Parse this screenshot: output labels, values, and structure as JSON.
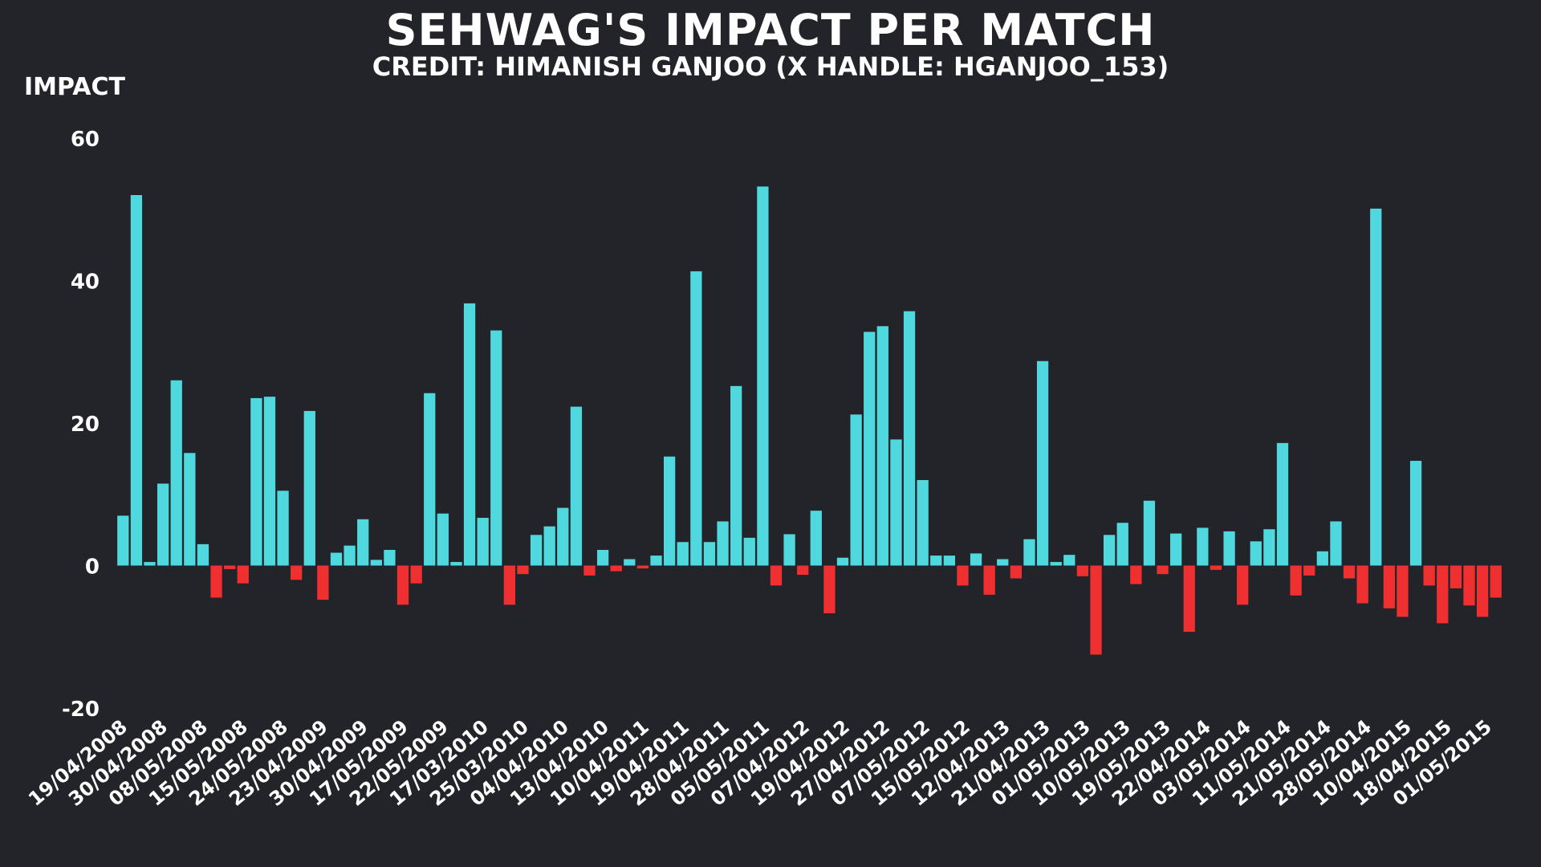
{
  "chart_data": {
    "type": "bar",
    "title": "SEHWAG'S IMPACT PER MATCH",
    "subtitle": "CREDIT: HIMANISH GANJOO (X HANDLE: HGANJOO_153)",
    "xlabel": "",
    "ylabel": "IMPACT",
    "ylim": [
      -20,
      60
    ],
    "yticks": [
      60,
      40,
      20,
      0,
      -20
    ],
    "grid": false,
    "positive_color": "#4fd8de",
    "negative_color": "#f03030",
    "x_tick_labels": [
      "19/04/2008",
      "30/04/2008",
      "08/05/2008",
      "15/05/2008",
      "24/05/2008",
      "23/04/2009",
      "30/04/2009",
      "17/05/2009",
      "22/05/2009",
      "17/03/2010",
      "25/03/2010",
      "04/04/2010",
      "13/04/2010",
      "10/04/2011",
      "19/04/2011",
      "28/04/2011",
      "05/05/2011",
      "07/04/2012",
      "19/04/2012",
      "27/04/2012",
      "07/05/2012",
      "15/05/2012",
      "12/04/2013",
      "21/04/2013",
      "01/05/2013",
      "10/05/2013",
      "19/05/2013",
      "22/04/2014",
      "03/05/2014",
      "11/05/2014",
      "21/05/2014",
      "28/05/2014",
      "10/04/2015",
      "18/04/2015",
      "01/05/2015"
    ],
    "values": [
      7,
      52,
      0.5,
      11.5,
      26,
      15.8,
      3,
      -4.5,
      -0.5,
      -2.5,
      23.5,
      23.7,
      10.5,
      -2,
      21.7,
      -4.8,
      1.8,
      2.8,
      6.5,
      0.8,
      2.2,
      -5.5,
      -2.5,
      24.2,
      7.3,
      0.5,
      36.8,
      6.7,
      33,
      -5.5,
      -1.2,
      4.3,
      5.5,
      8.1,
      22.3,
      -1.4,
      2.2,
      -0.8,
      0.9,
      -0.4,
      1.4,
      15.3,
      3.3,
      41.3,
      3.3,
      6.2,
      25.2,
      3.9,
      53.2,
      -2.8,
      4.4,
      -1.3,
      7.7,
      -6.7,
      1.1,
      21.2,
      32.8,
      33.6,
      17.7,
      35.7,
      12,
      1.4,
      1.4,
      -2.8,
      1.7,
      -4.1,
      0.9,
      -1.8,
      3.7,
      28.7,
      0.5,
      1.5,
      -1.5,
      -12.5,
      4.3,
      6,
      -2.6,
      9.1,
      -1.2,
      4.5,
      -9.3,
      5.3,
      -0.6,
      4.8,
      -5.5,
      3.4,
      5.1,
      17.2,
      -4.2,
      -1.4,
      2,
      6.2,
      -1.8,
      -5.3,
      50.1,
      -6,
      -7.2,
      14.7,
      -2.8,
      -8.1,
      -3.2,
      -5.6,
      -7.2,
      -4.5
    ]
  }
}
